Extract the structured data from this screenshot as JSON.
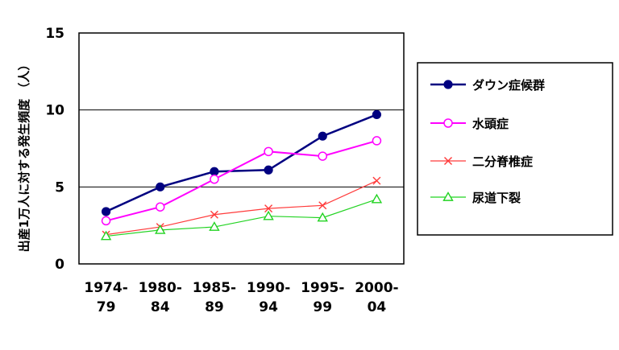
{
  "chart_data": {
    "type": "line",
    "ylabel": "出産1万人に対する発生頻度 （人）",
    "ylim": [
      0,
      15
    ],
    "yticks": [
      0,
      5,
      10,
      15
    ],
    "categories": [
      "1974-\n79",
      "1980-\n84",
      "1985-\n89",
      "1990-\n94",
      "1995-\n99",
      "2000-\n04"
    ],
    "grid": "horizontal",
    "legend_position": "right",
    "series": [
      {
        "name": "ダウン症候群",
        "values": [
          3.4,
          5.0,
          6.0,
          6.1,
          8.3,
          9.7
        ],
        "color": "#000080",
        "marker": "filled-circle"
      },
      {
        "name": "水頭症",
        "values": [
          2.8,
          3.7,
          5.5,
          7.3,
          7.0,
          8.0
        ],
        "color": "#ff00ff",
        "marker": "open-circle"
      },
      {
        "name": "二分脊椎症",
        "values": [
          1.9,
          2.4,
          3.2,
          3.6,
          3.8,
          5.4
        ],
        "color": "#ff3b3b",
        "marker": "x"
      },
      {
        "name": "尿道下裂",
        "values": [
          1.8,
          2.2,
          2.4,
          3.1,
          3.0,
          4.2
        ],
        "color": "#22d322",
        "marker": "triangle"
      }
    ]
  }
}
